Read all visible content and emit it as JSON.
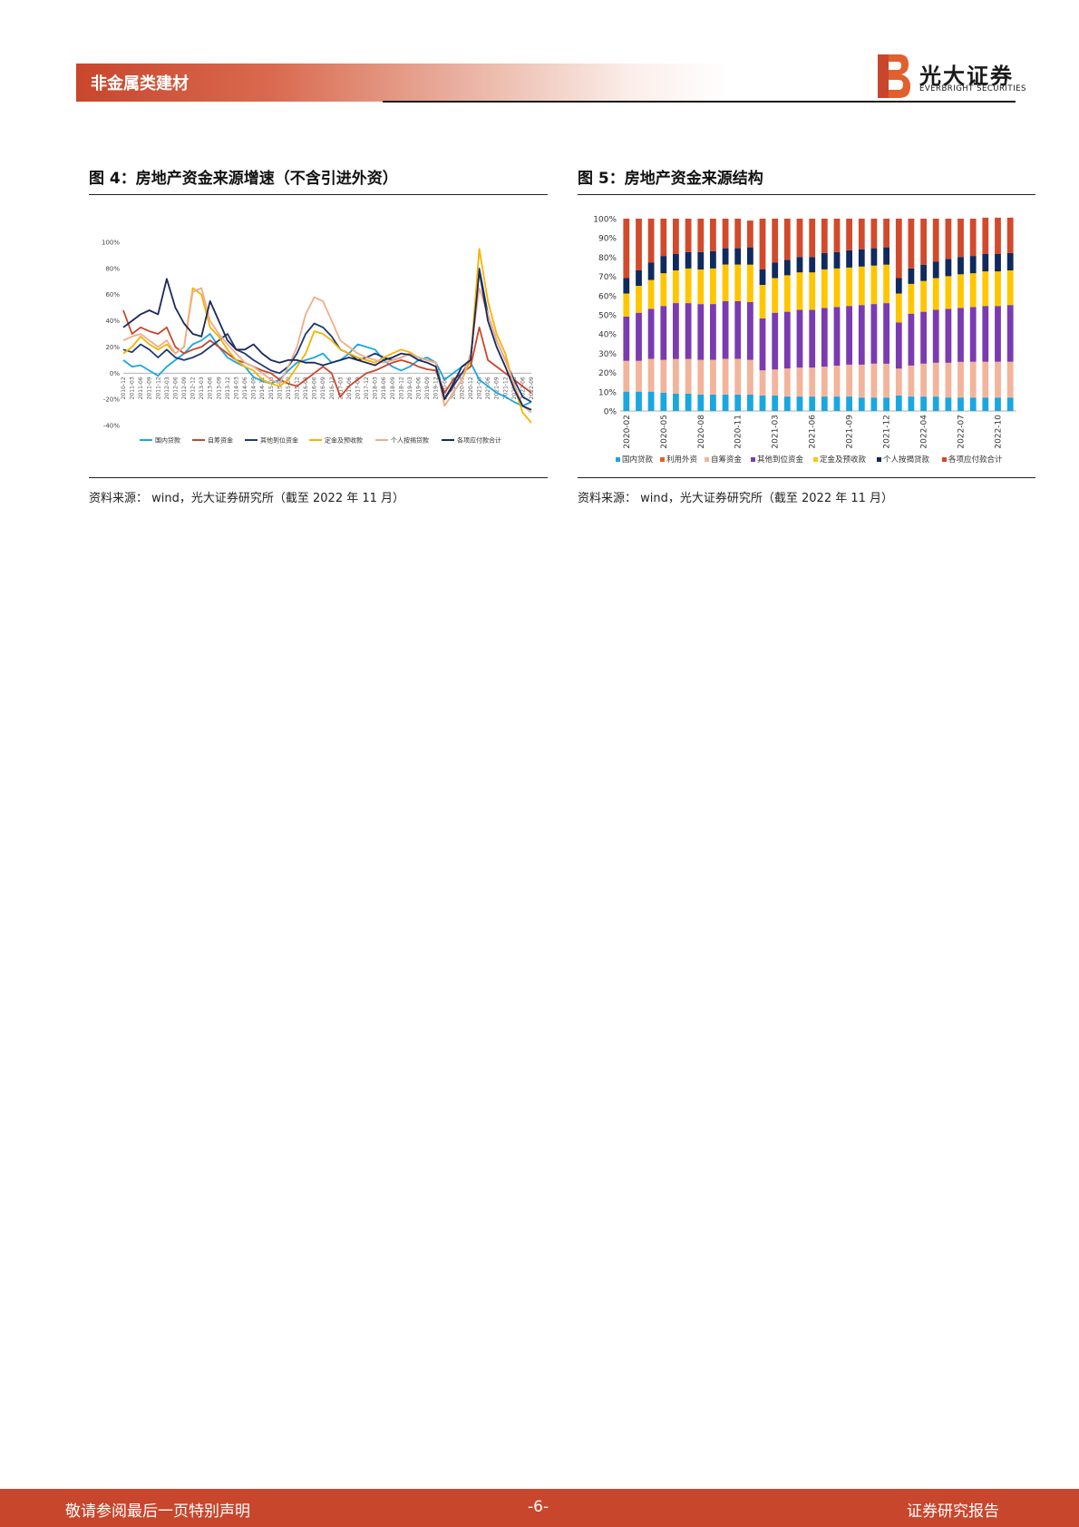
{
  "header": {
    "section": "非金属类建材",
    "logo_cn": "光大证券",
    "logo_en": "EVERBRIGHT SECURITIES"
  },
  "figure4": {
    "title": "图 4：房地产资金来源增速（不含引进外资）",
    "source": "资料来源：  wind，光大证券研究所（截至 2022 年 11 月）"
  },
  "figure5": {
    "title": "图 5：房地产资金来源结构",
    "source": "资料来源：  wind，光大证券研究所（截至 2022 年 11 月）"
  },
  "footer": {
    "left": "敬请参阅最后一页特别声明",
    "page": "-6-",
    "right": "证券研究报告"
  },
  "chart_data": [
    {
      "type": "line",
      "id": "fig4",
      "title": "房地产资金来源增速（不含引进外资）",
      "ylim": [
        -40,
        100
      ],
      "yticks": [
        "100%",
        "80%",
        "60%",
        "40%",
        "20%",
        "0%",
        "-20%",
        "-40%"
      ],
      "x": [
        "2010-12",
        "2011-03",
        "2011-06",
        "2011-09",
        "2011-12",
        "2012-03",
        "2012-06",
        "2012-09",
        "2012-12",
        "2013-03",
        "2013-06",
        "2013-09",
        "2013-12",
        "2014-03",
        "2014-06",
        "2014-09",
        "2014-12",
        "2015-03",
        "2015-06",
        "2015-09",
        "2015-12",
        "2016-03",
        "2016-06",
        "2016-09",
        "2016-12",
        "2017-03",
        "2017-06",
        "2017-09",
        "2017-12",
        "2018-03",
        "2018-06",
        "2018-09",
        "2018-12",
        "2019-03",
        "2019-06",
        "2019-09",
        "2019-12",
        "2020-03",
        "2020-06",
        "2020-09",
        "2020-12",
        "2021-03",
        "2021-06",
        "2021-09",
        "2021-12",
        "2022-03",
        "2022-06",
        "2022-09"
      ],
      "series": [
        {
          "name": "国内贷款",
          "color": "#1aa7e0",
          "values": [
            10,
            5,
            6,
            2,
            -2,
            5,
            10,
            15,
            22,
            25,
            30,
            20,
            12,
            8,
            5,
            -3,
            -6,
            -8,
            -5,
            2,
            8,
            10,
            12,
            15,
            8,
            10,
            15,
            22,
            20,
            18,
            10,
            5,
            2,
            5,
            10,
            12,
            8,
            -5,
            0,
            5,
            8,
            -5,
            -10,
            -15,
            -18,
            -22,
            -25,
            -22
          ]
        },
        {
          "name": "自筹资金",
          "color": "#c8462c",
          "values": [
            48,
            30,
            35,
            32,
            30,
            35,
            20,
            15,
            18,
            20,
            25,
            20,
            15,
            10,
            8,
            5,
            2,
            0,
            -5,
            -8,
            -10,
            -5,
            0,
            5,
            0,
            -18,
            -10,
            -5,
            0,
            2,
            5,
            8,
            10,
            8,
            5,
            3,
            2,
            -15,
            -5,
            0,
            5,
            35,
            10,
            5,
            0,
            -5,
            -10,
            -15
          ]
        },
        {
          "name": "其他到位资金",
          "color": "#203c72",
          "values": [
            18,
            16,
            22,
            18,
            12,
            18,
            12,
            10,
            12,
            15,
            20,
            25,
            30,
            18,
            15,
            10,
            6,
            2,
            0,
            5,
            15,
            30,
            38,
            35,
            28,
            18,
            15,
            10,
            12,
            15,
            12,
            10,
            12,
            15,
            12,
            10,
            8,
            -20,
            -10,
            0,
            10,
            80,
            45,
            25,
            10,
            -5,
            -18,
            -22
          ]
        },
        {
          "name": "定金及预收款",
          "color": "#f4b400",
          "values": [
            15,
            20,
            28,
            22,
            18,
            22,
            15,
            20,
            65,
            60,
            35,
            28,
            18,
            10,
            5,
            2,
            -5,
            -8,
            -10,
            -5,
            5,
            15,
            32,
            30,
            25,
            18,
            15,
            12,
            10,
            8,
            12,
            15,
            18,
            16,
            12,
            10,
            8,
            -25,
            -15,
            -5,
            10,
            95,
            55,
            30,
            15,
            -10,
            -30,
            -38
          ]
        },
        {
          "name": "个人按揭贷款",
          "color": "#f0ad8e",
          "values": [
            25,
            28,
            30,
            25,
            20,
            25,
            15,
            20,
            62,
            65,
            40,
            30,
            22,
            15,
            8,
            5,
            0,
            -5,
            -8,
            5,
            20,
            45,
            58,
            55,
            40,
            25,
            20,
            15,
            12,
            10,
            8,
            10,
            12,
            15,
            12,
            10,
            8,
            -25,
            -15,
            -5,
            15,
            65,
            45,
            25,
            10,
            -8,
            -25,
            -30
          ]
        },
        {
          "name": "各项应付款合计",
          "color": "#1a2a5a",
          "values": [
            35,
            40,
            45,
            48,
            45,
            72,
            50,
            38,
            30,
            28,
            55,
            40,
            25,
            18,
            18,
            22,
            15,
            10,
            8,
            10,
            10,
            8,
            8,
            6,
            8,
            10,
            12,
            10,
            8,
            6,
            10,
            12,
            15,
            14,
            10,
            8,
            5,
            -20,
            -8,
            5,
            10,
            78,
            40,
            20,
            5,
            -12,
            -25,
            -28
          ]
        }
      ]
    },
    {
      "type": "bar",
      "stacked": true,
      "id": "fig5",
      "title": "房地产资金来源结构",
      "ylim": [
        0,
        100
      ],
      "yticks": [
        "100%",
        "90%",
        "80%",
        "70%",
        "60%",
        "50%",
        "40%",
        "30%",
        "20%",
        "10%",
        "0%"
      ],
      "xtick_labels": [
        "2020-02",
        "2020-05",
        "2020-08",
        "2020-11",
        "2021-03",
        "2021-06",
        "2021-09",
        "2021-12",
        "2022-04",
        "2022-07",
        "2022-10"
      ],
      "categories": [
        "2020-02",
        "2020-03",
        "2020-04",
        "2020-05",
        "2020-06",
        "2020-07",
        "2020-08",
        "2020-09",
        "2020-10",
        "2020-11",
        "2020-12",
        "2021-02",
        "2021-03",
        "2021-04",
        "2021-05",
        "2021-06",
        "2021-07",
        "2021-08",
        "2021-09",
        "2021-10",
        "2021-11",
        "2021-12",
        "2022-02",
        "2022-03",
        "2022-04",
        "2022-05",
        "2022-06",
        "2022-07",
        "2022-08",
        "2022-09",
        "2022-10",
        "2022-11"
      ],
      "series": [
        {
          "name": "国内贷款",
          "color": "#1aa7e0",
          "values": [
            10,
            10,
            10,
            9.5,
            9,
            9,
            8.5,
            8.5,
            8.5,
            8.5,
            8.5,
            8,
            8,
            7.5,
            7.5,
            7.5,
            7.5,
            7.5,
            7.5,
            7,
            7,
            7,
            8,
            7.5,
            7.5,
            7.5,
            7,
            7,
            7,
            7,
            7,
            7
          ]
        },
        {
          "name": "利用外资",
          "color": "#e0602e",
          "values": [
            0.1,
            0.1,
            0.1,
            0.1,
            0.1,
            0.1,
            0.1,
            0.1,
            0.1,
            0.1,
            0.1,
            0.1,
            0.1,
            0.1,
            0.1,
            0.1,
            0.1,
            0.1,
            0.1,
            0.1,
            0.1,
            0.1,
            0.1,
            0.1,
            0.1,
            0.1,
            0.1,
            0.1,
            0.1,
            0.1,
            0.1,
            0.1
          ]
        },
        {
          "name": "自筹资金",
          "color": "#f2b49b",
          "values": [
            16,
            16,
            17,
            17,
            18,
            18,
            18,
            18,
            18.5,
            18.5,
            18,
            13,
            13.5,
            14.5,
            15,
            15,
            15.5,
            16,
            16.5,
            17,
            17.5,
            17.5,
            14,
            16,
            17,
            17.5,
            18,
            18.5,
            18.5,
            18.5,
            18.5,
            18.5
          ]
        },
        {
          "name": "其他到位资金",
          "color": "#7a3bb0",
          "values": [
            23,
            25,
            26,
            28,
            29,
            29,
            29,
            29,
            30,
            30,
            30,
            27,
            29.5,
            29.5,
            30,
            30,
            30.5,
            30.5,
            30.5,
            31,
            31,
            31.5,
            24,
            27,
            27,
            27.5,
            28,
            28,
            28.5,
            29,
            29,
            29.5
          ]
        },
        {
          "name": "定金及预收款",
          "color": "#ffc600",
          "values": [
            12,
            14,
            15,
            17,
            17,
            18,
            18,
            18.5,
            19,
            19,
            19.5,
            17.5,
            18,
            19,
            19.5,
            19.5,
            20,
            20,
            20,
            20,
            20,
            20,
            15,
            15.5,
            16,
            16.5,
            17,
            17.5,
            17.5,
            18,
            18,
            18
          ]
        },
        {
          "name": "个人按揭贷款",
          "color": "#0f2a5e",
          "values": [
            8,
            8,
            9,
            9,
            8.5,
            8.5,
            9,
            9,
            8.5,
            8.5,
            9,
            8,
            8,
            8,
            8,
            8,
            8.5,
            8.5,
            9,
            9,
            9,
            9,
            8,
            8,
            8.5,
            8.5,
            9,
            9,
            9,
            9,
            9,
            9
          ]
        },
        {
          "name": "各项应付款合计",
          "color": "#d24a2c",
          "values": [
            30.9,
            26.9,
            22.9,
            19.4,
            18.4,
            17.4,
            17.4,
            16.9,
            15.4,
            15.4,
            13.9,
            26.4,
            22.9,
            21.4,
            19.9,
            19.9,
            17.9,
            17.4,
            16.4,
            15.9,
            15.4,
            14.9,
            30.9,
            25.9,
            23.9,
            22.4,
            20.9,
            19.9,
            19.4,
            18.9,
            18.9,
            18.4
          ]
        }
      ]
    }
  ]
}
